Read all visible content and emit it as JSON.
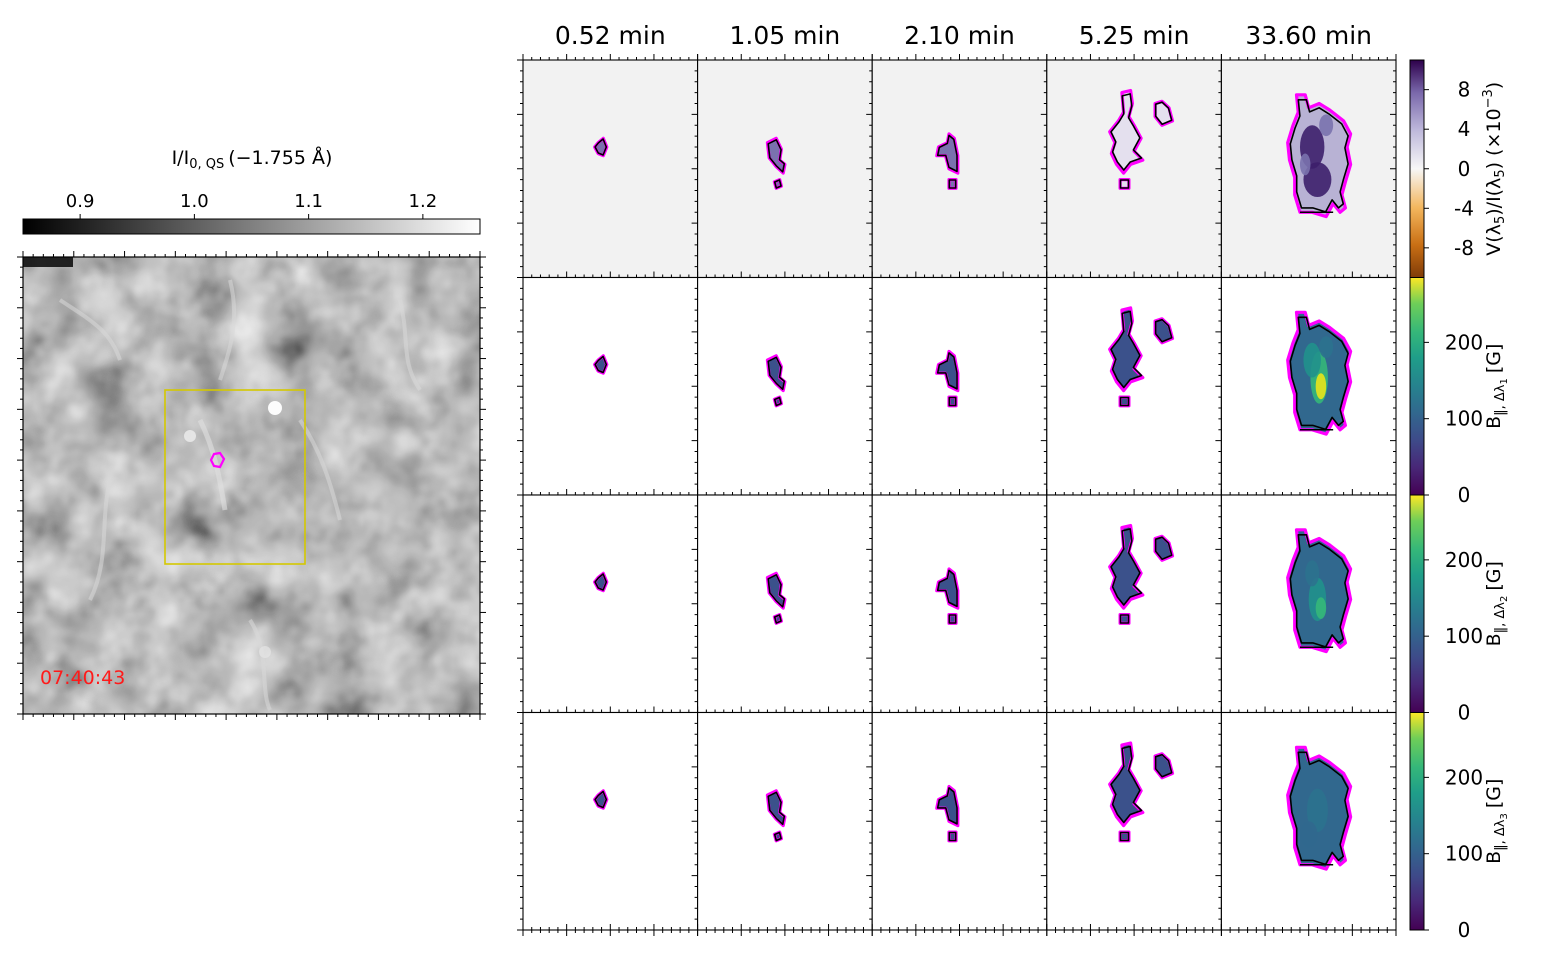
{
  "chart_data": [
    {
      "type": "heatmap",
      "image": "continuum intensity map (grayscale)",
      "colorbar": {
        "label": "I/I",
        "label_sub": "0, QS",
        "label_suffix": "(−1.755 Å)",
        "ticks": [
          "0.9",
          "1.0",
          "1.1",
          "1.2"
        ],
        "tick_values": [
          0.9,
          1.0,
          1.1,
          1.2
        ],
        "range": [
          0.85,
          1.25
        ],
        "colormap": "gray"
      },
      "timestamp": "07:40:43",
      "timestamp_color": "#ff1a1a",
      "box_color": "#d4c800",
      "contour_color": "#ff00ff"
    },
    {
      "type": "heatmap",
      "columns": [
        "0.52 min",
        "1.05 min",
        "2.10 min",
        "5.25 min",
        "33.60 min"
      ],
      "rows": [
        {
          "quantity": "V(λ5)/I(λ5)",
          "colorbar_label": "V(λ",
          "colorbar_label_full": "V(λ5)/I(λ5) (×10−3)",
          "ticks": [
            "8",
            "4",
            "0",
            "-4",
            "-8"
          ],
          "tick_values": [
            8,
            4,
            0,
            -4,
            -8
          ],
          "range": [
            -11,
            11
          ],
          "colormap": "PuOr"
        },
        {
          "quantity": "B‖,Δλ1",
          "colorbar_label": "B",
          "colorbar_sub": "‖, Δλ",
          "colorbar_sub_index": "1",
          "colorbar_unit": "[G]",
          "ticks": [
            "0",
            "100",
            "200"
          ],
          "tick_values": [
            0,
            100,
            200
          ],
          "range": [
            0,
            285
          ],
          "colormap": "viridis"
        },
        {
          "quantity": "B‖,Δλ2",
          "colorbar_label": "B",
          "colorbar_sub": "‖, Δλ",
          "colorbar_sub_index": "2",
          "colorbar_unit": "[G]",
          "ticks": [
            "0",
            "100",
            "200"
          ],
          "tick_values": [
            0,
            100,
            200
          ],
          "range": [
            0,
            285
          ],
          "colormap": "viridis"
        },
        {
          "quantity": "B‖,Δλ3",
          "colorbar_label": "B",
          "colorbar_sub": "‖, Δλ",
          "colorbar_sub_index": "3",
          "colorbar_unit": "[G]",
          "ticks": [
            "0",
            "100",
            "200"
          ],
          "tick_values": [
            0,
            100,
            200
          ],
          "range": [
            0,
            285
          ],
          "colormap": "viridis"
        }
      ],
      "panel_background": [
        "#f2f2f2",
        "#ffffff",
        "#ffffff",
        "#ffffff"
      ],
      "contour_colors": [
        "#ff00ff",
        "#000000"
      ],
      "fill_colors": {
        "stokes_v": [
          "#e4e0ee",
          "#b8b2d4",
          "#7a72ae",
          "#3d1f6c"
        ],
        "magnetic_field": [
          "#3b518b",
          "#31688e",
          "#2c728e",
          "#21918c",
          "#35b779",
          "#b5de2b",
          "#e8e419"
        ]
      }
    }
  ]
}
